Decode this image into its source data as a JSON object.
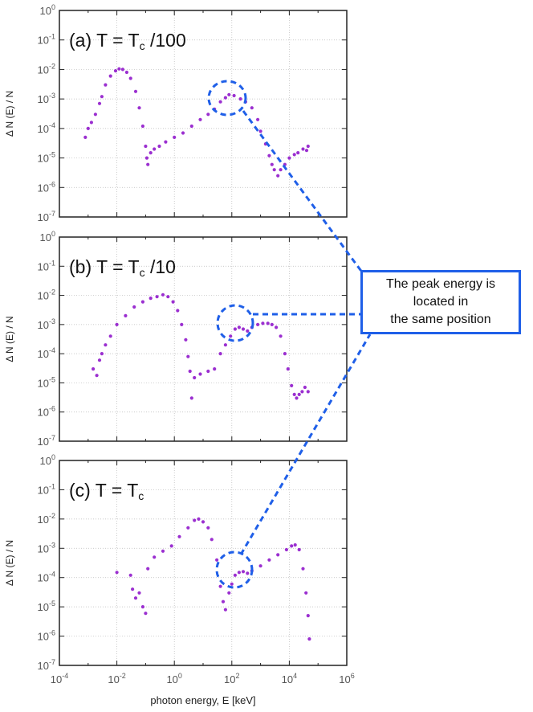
{
  "colors": {
    "marker": "#9b2fd0",
    "annotation": "#1f5fe8",
    "frame": "#222222"
  },
  "chart_data": [
    {
      "type": "scatter",
      "panel_label": {
        "prefix": "(a)  T = T",
        "subscript": "c",
        "suffix": " /100"
      },
      "ylabel": "Δ N (E) / N",
      "xlabel": "",
      "x_log": true,
      "y_log": true,
      "xlim": [
        0.0001,
        1000000
      ],
      "ylim": [
        1e-07,
        1
      ],
      "grid": true,
      "series": [
        {
          "points": [
            [
              0.0008,
              5e-05
            ],
            [
              0.001,
              0.0001
            ],
            [
              0.0013,
              0.00016
            ],
            [
              0.0018,
              0.0003
            ],
            [
              0.0025,
              0.0007
            ],
            [
              0.003,
              0.0012
            ],
            [
              0.004,
              0.003
            ],
            [
              0.006,
              0.006
            ],
            [
              0.009,
              0.009
            ],
            [
              0.012,
              0.0105
            ],
            [
              0.016,
              0.01
            ],
            [
              0.022,
              0.008
            ],
            [
              0.03,
              0.005
            ],
            [
              0.045,
              0.0018
            ],
            [
              0.06,
              0.0005
            ],
            [
              0.08,
              0.00012
            ],
            [
              0.1,
              2.5e-05
            ],
            [
              0.11,
              1e-05
            ],
            [
              0.12,
              6e-06
            ],
            [
              0.15,
              1.5e-05
            ],
            [
              0.2,
              2e-05
            ],
            [
              0.3,
              2.5e-05
            ],
            [
              0.5,
              3.5e-05
            ],
            [
              1,
              5e-05
            ],
            [
              2,
              7e-05
            ],
            [
              4,
              0.00012
            ],
            [
              8,
              0.0002
            ],
            [
              15,
              0.0003
            ],
            [
              25,
              0.00045
            ],
            [
              40,
              0.0008
            ],
            [
              60,
              0.0011
            ],
            [
              80,
              0.0014
            ],
            [
              120,
              0.0013
            ],
            [
              200,
              0.001
            ],
            [
              300,
              0.0008
            ],
            [
              500,
              0.0005
            ],
            [
              800,
              0.0002
            ],
            [
              1000,
              8e-05
            ],
            [
              1500,
              3e-05
            ],
            [
              2000,
              1.2e-05
            ],
            [
              2500,
              6e-06
            ],
            [
              3000,
              4e-06
            ],
            [
              4000,
              2.5e-06
            ],
            [
              5000,
              4e-06
            ],
            [
              7000,
              6e-06
            ],
            [
              10000,
              1e-05
            ],
            [
              15000,
              1.3e-05
            ],
            [
              20000,
              1.5e-05
            ],
            [
              30000,
              2e-05
            ],
            [
              40000,
              1.8e-05
            ],
            [
              45000,
              2.5e-05
            ]
          ]
        }
      ]
    },
    {
      "type": "scatter",
      "panel_label": {
        "prefix": "(b)  T = T",
        "subscript": "c",
        "suffix": " /10"
      },
      "ylabel": "Δ N (E) / N",
      "xlabel": "",
      "x_log": true,
      "y_log": true,
      "xlim": [
        0.0001,
        1000000
      ],
      "ylim": [
        1e-07,
        1
      ],
      "grid": true,
      "series": [
        {
          "points": [
            [
              0.0015,
              3e-05
            ],
            [
              0.002,
              1.8e-05
            ],
            [
              0.0025,
              6e-05
            ],
            [
              0.003,
              0.0001
            ],
            [
              0.004,
              0.0002
            ],
            [
              0.006,
              0.0004
            ],
            [
              0.01,
              0.001
            ],
            [
              0.02,
              0.002
            ],
            [
              0.04,
              0.004
            ],
            [
              0.08,
              0.006
            ],
            [
              0.15,
              0.008
            ],
            [
              0.25,
              0.009
            ],
            [
              0.4,
              0.0105
            ],
            [
              0.6,
              0.009
            ],
            [
              0.9,
              0.006
            ],
            [
              1.3,
              0.003
            ],
            [
              1.8,
              0.001
            ],
            [
              2.5,
              0.0003
            ],
            [
              3,
              8e-05
            ],
            [
              3.5,
              2.5e-05
            ],
            [
              4,
              3e-06
            ],
            [
              5,
              1.5e-05
            ],
            [
              8,
              2e-05
            ],
            [
              15,
              2.5e-05
            ],
            [
              25,
              3e-05
            ],
            [
              40,
              0.0001
            ],
            [
              60,
              0.0002
            ],
            [
              90,
              0.0004
            ],
            [
              130,
              0.0007
            ],
            [
              180,
              0.0008
            ],
            [
              250,
              0.0007
            ],
            [
              350,
              0.0006
            ],
            [
              500,
              0.0008
            ],
            [
              800,
              0.001
            ],
            [
              1200,
              0.0011
            ],
            [
              1800,
              0.0011
            ],
            [
              2500,
              0.001
            ],
            [
              3500,
              0.0008
            ],
            [
              5000,
              0.0004
            ],
            [
              7000,
              0.0001
            ],
            [
              9000,
              3e-05
            ],
            [
              12000,
              8e-06
            ],
            [
              15000,
              4e-06
            ],
            [
              18000,
              3e-06
            ],
            [
              22000,
              4e-06
            ],
            [
              28000,
              5e-06
            ],
            [
              35000,
              7e-06
            ],
            [
              45000,
              5e-06
            ]
          ]
        }
      ]
    },
    {
      "type": "scatter",
      "panel_label": {
        "prefix": "(c)  T = T",
        "subscript": "c",
        "suffix": ""
      },
      "ylabel": "Δ N (E) / N",
      "xlabel": "photon energy, E [keV]",
      "x_log": true,
      "y_log": true,
      "xlim": [
        0.0001,
        1000000
      ],
      "ylim": [
        1e-07,
        1
      ],
      "grid": true,
      "series": [
        {
          "points": [
            [
              0.01,
              0.00015
            ],
            [
              0.03,
              0.00012
            ],
            [
              0.035,
              4e-05
            ],
            [
              0.045,
              2e-05
            ],
            [
              0.06,
              3e-05
            ],
            [
              0.08,
              1e-05
            ],
            [
              0.1,
              6e-06
            ],
            [
              0.12,
              0.0002
            ],
            [
              0.2,
              0.0005
            ],
            [
              0.4,
              0.0008
            ],
            [
              0.8,
              0.0012
            ],
            [
              1.5,
              0.0025
            ],
            [
              3,
              0.005
            ],
            [
              5,
              0.009
            ],
            [
              7,
              0.01
            ],
            [
              10,
              0.008
            ],
            [
              15,
              0.005
            ],
            [
              20,
              0.002
            ],
            [
              30,
              0.0004
            ],
            [
              40,
              5e-05
            ],
            [
              50,
              1.5e-05
            ],
            [
              60,
              8e-06
            ],
            [
              80,
              3e-05
            ],
            [
              100,
              6e-05
            ],
            [
              130,
              0.00012
            ],
            [
              180,
              0.00015
            ],
            [
              250,
              0.00016
            ],
            [
              350,
              0.00014
            ],
            [
              500,
              0.00017
            ],
            [
              1000,
              0.00025
            ],
            [
              2000,
              0.0004
            ],
            [
              4000,
              0.0006
            ],
            [
              8000,
              0.0009
            ],
            [
              12000,
              0.0012
            ],
            [
              16000,
              0.0013
            ],
            [
              22000,
              0.0009
            ],
            [
              30000,
              0.0002
            ],
            [
              38000,
              3e-05
            ],
            [
              45000,
              5e-06
            ],
            [
              50000,
              8e-07
            ]
          ]
        }
      ]
    }
  ],
  "annotation": {
    "lines": [
      "The peak energy is",
      "located in",
      "the same position"
    ]
  }
}
